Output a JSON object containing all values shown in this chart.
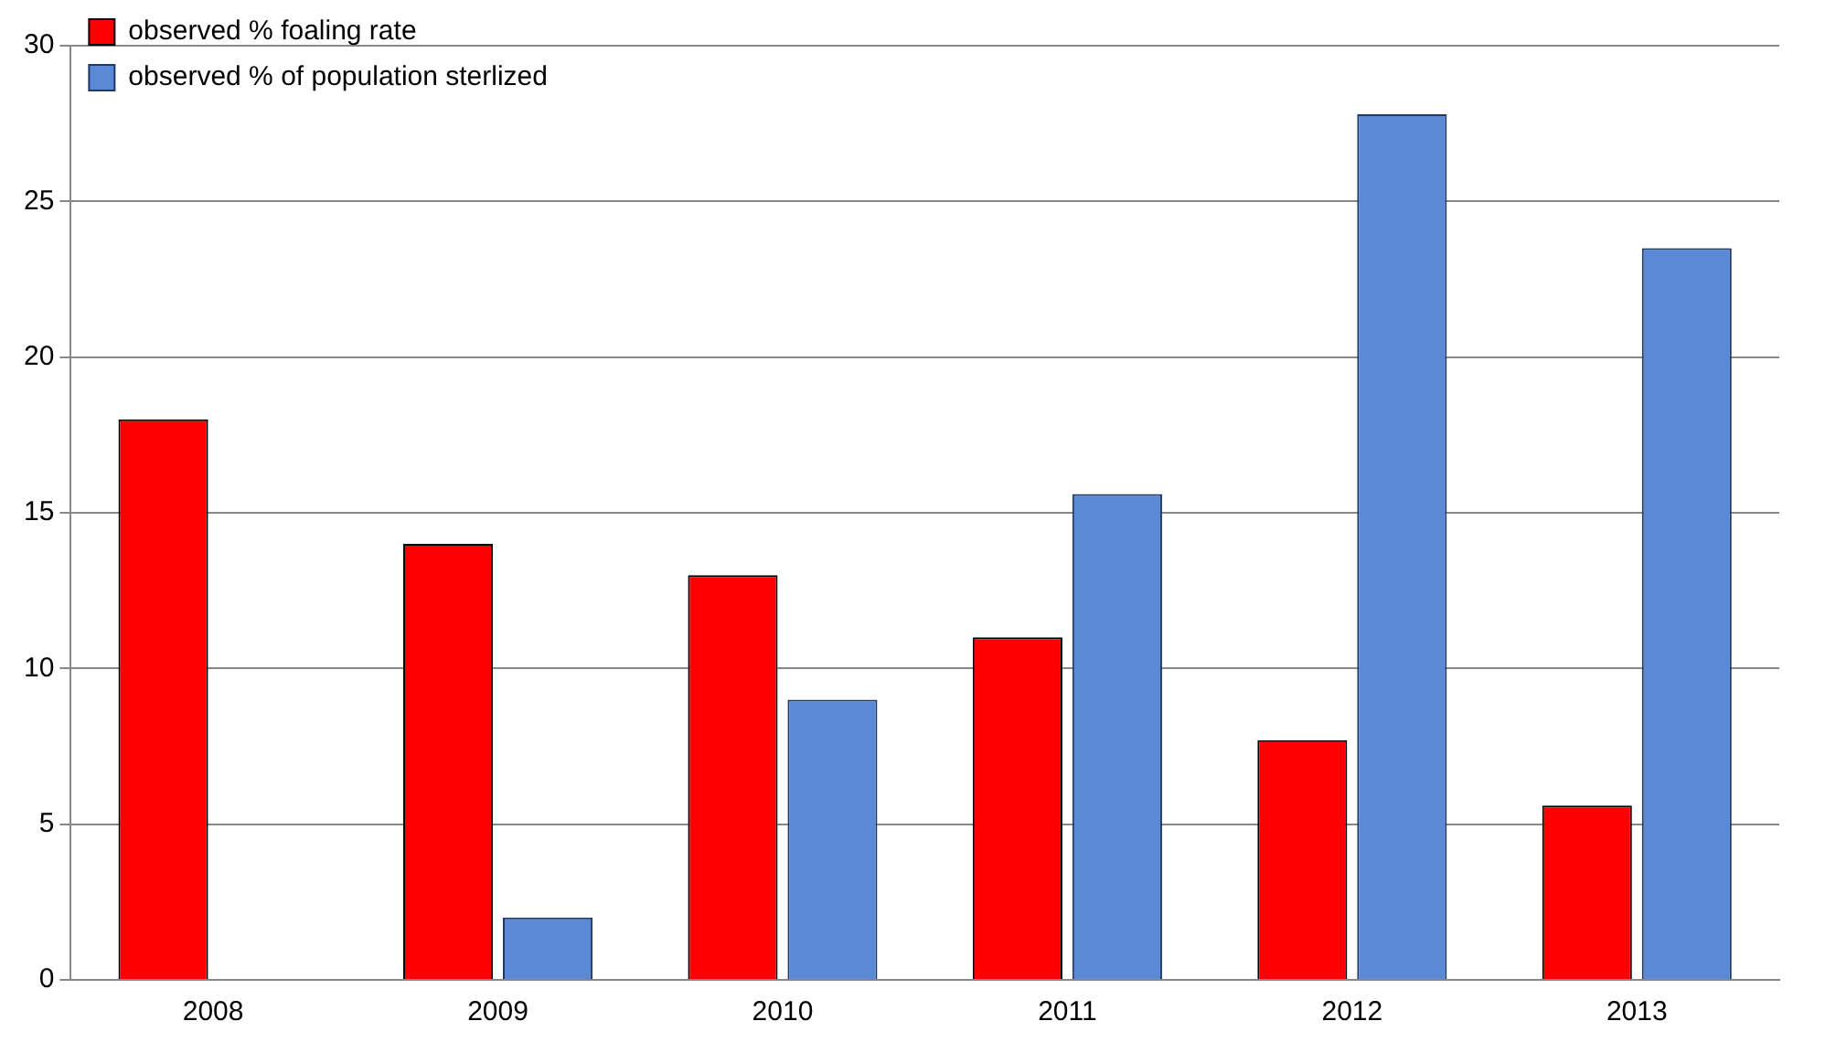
{
  "chart_data": {
    "type": "bar",
    "categories": [
      "2008",
      "2009",
      "2010",
      "2011",
      "2012",
      "2013"
    ],
    "series": [
      {
        "name": "observed % foaling rate",
        "color": "#ff0000",
        "values": [
          18,
          14,
          13,
          11,
          7.7,
          5.6
        ]
      },
      {
        "name": "observed % of population sterlized",
        "color": "#5a8ad6",
        "values": [
          null,
          2,
          9,
          15.6,
          27.8,
          23.5
        ]
      }
    ],
    "ylim": [
      0,
      30
    ],
    "yticks": [
      0,
      5,
      10,
      15,
      20,
      25,
      30
    ],
    "grid": "y",
    "legend": "top left"
  }
}
